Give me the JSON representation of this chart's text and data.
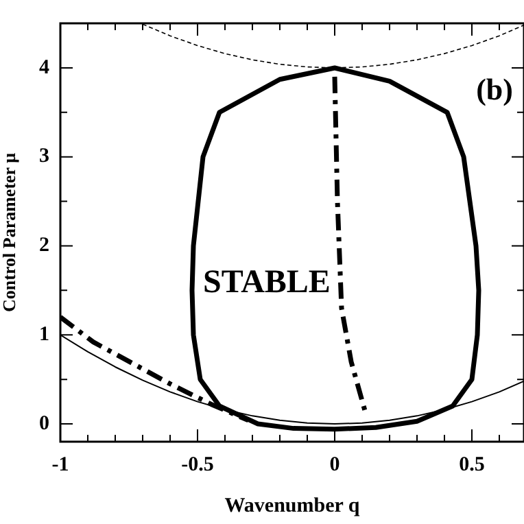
{
  "chart_data": {
    "type": "line",
    "xlabel": "Wavenumber q",
    "ylabel": "Control Parameter μ",
    "xlim": [
      -1,
      0.69
    ],
    "ylim": [
      -0.2,
      4.5
    ],
    "xticks": [
      -1,
      {
        "value": -0.9,
        "label": null
      },
      {
        "value": -0.8,
        "label": null
      },
      {
        "value": -0.7,
        "label": null
      },
      {
        "value": -0.6,
        "label": null
      },
      -0.5,
      {
        "value": -0.4,
        "label": null
      },
      {
        "value": -0.3,
        "label": null
      },
      {
        "value": -0.2,
        "label": null
      },
      {
        "value": -0.1,
        "label": null
      },
      0,
      {
        "value": 0.1,
        "label": null
      },
      {
        "value": 0.2,
        "label": null
      },
      {
        "value": 0.3,
        "label": null
      },
      {
        "value": 0.4,
        "label": null
      },
      0.5,
      {
        "value": 0.6,
        "label": null
      }
    ],
    "yticks": [
      0,
      {
        "value": 0.5,
        "label": null
      },
      1,
      {
        "value": 1.5,
        "label": null
      },
      2,
      {
        "value": 2.5,
        "label": null
      },
      3,
      {
        "value": 3.5,
        "label": null
      },
      4
    ],
    "grid": false,
    "legend": false,
    "marker": "none",
    "series": [
      {
        "color": "#000000",
        "line_style": "solid",
        "x": [
          -1,
          -0.9,
          -0.8,
          -0.7,
          -0.6,
          -0.5,
          -0.4,
          -0.3,
          -0.2,
          -0.1,
          0,
          0.1,
          0.2,
          0.3,
          0.4,
          0.5,
          0.6,
          0.69
        ],
        "values": [
          1,
          0.81,
          0.64,
          0.49,
          0.36,
          0.25,
          0.16,
          0.09,
          0.04,
          0.01,
          0,
          0.01,
          0.04,
          0.09,
          0.16,
          0.25,
          0.36,
          0.48
        ]
      },
      {
        "color": "#000000",
        "line_style": "dotted",
        "x": [
          -0.7,
          -0.6,
          -0.5,
          -0.4,
          -0.3,
          -0.2,
          -0.1,
          0,
          0.1,
          0.2,
          0.3,
          0.4,
          0.5,
          0.6,
          0.69
        ],
        "values": [
          4.49,
          4.36,
          4.25,
          4.16,
          4.09,
          4.04,
          4.01,
          4,
          4.01,
          4.04,
          4.09,
          4.16,
          4.25,
          4.36,
          4.48
        ]
      },
      {
        "color": "#000000",
        "line_style": "dashed",
        "x": [
          0,
          0.005,
          0.01,
          0.025,
          0.06,
          0.11
        ],
        "values": [
          3.9,
          3.2,
          2.5,
          1.3,
          0.7,
          0.15
        ]
      },
      {
        "color": "#000000",
        "line_style": "dashed",
        "x": [
          -1,
          -0.88,
          -0.6,
          -0.45,
          -0.315
        ],
        "values": [
          1.2,
          0.92,
          0.45,
          0.22,
          0.04
        ]
      }
    ],
    "annotations": [
      "STABLE",
      "(b)"
    ]
  }
}
